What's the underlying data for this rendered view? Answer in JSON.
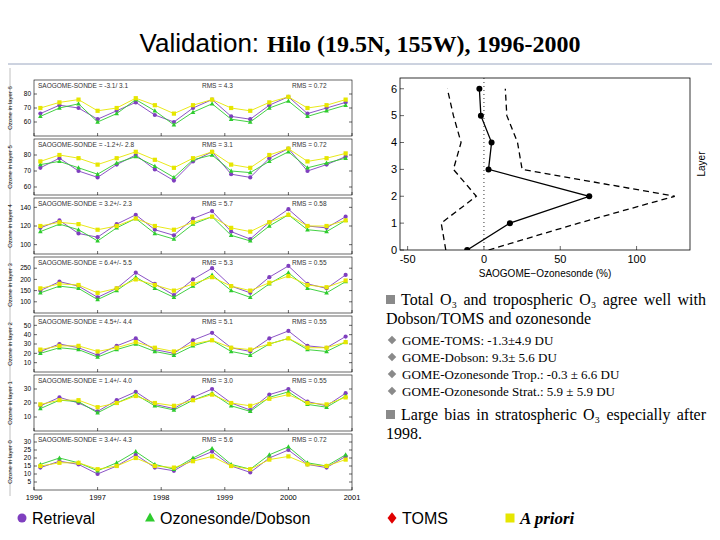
{
  "title": {
    "prefix": "Validation:",
    "text": "Hilo (19.5N, 155W), 1996-2000"
  },
  "chart_data": [
    {
      "type": "line",
      "ylabel": "Ozone in layer 6",
      "annotations": [
        "SAOGOME-SONDE = -3.1/ 3.1",
        "RMS = 4.3",
        "RMS = 0.72"
      ],
      "x": [
        1996.1,
        1996.4,
        1996.7,
        1997.0,
        1997.3,
        1997.6,
        1997.9,
        1998.2,
        1998.5,
        1998.8,
        1999.1,
        1999.4,
        1999.7,
        2000.0,
        2000.3,
        2000.6,
        2000.9
      ],
      "xlim": [
        1996,
        2001
      ],
      "xticks": [
        1996,
        1997,
        1998,
        1999,
        2000,
        2001
      ],
      "ylim": [
        50,
        90
      ],
      "yticks": [
        60,
        70,
        80
      ],
      "tick_labels": "y",
      "series": [
        {
          "color": "#7f3fbf",
          "marker": "circle",
          "line_style": "solid",
          "values": [
            66,
            72,
            70,
            62,
            68,
            74,
            65,
            60,
            70,
            76,
            64,
            62,
            72,
            78,
            66,
            70,
            74
          ]
        },
        {
          "color": "#2ecc2e",
          "marker": "triangle",
          "line_style": "solid",
          "values": [
            64,
            70,
            73,
            60,
            66,
            76,
            68,
            58,
            67,
            73,
            62,
            60,
            70,
            75,
            64,
            68,
            72
          ]
        },
        {
          "color": "#e6e600",
          "marker": "square",
          "line_style": "solid",
          "values": [
            70,
            74,
            76,
            68,
            70,
            77,
            72,
            66,
            72,
            76,
            70,
            68,
            74,
            78,
            70,
            72,
            76
          ]
        }
      ]
    },
    {
      "type": "line",
      "ylabel": "Ozone in layer 5",
      "annotations": [
        "SAOGOME-SONDE = -1.2+/- 2.8",
        "RMS = 3.1",
        "RMS = 0.72"
      ],
      "x": [
        1996.1,
        1996.4,
        1996.7,
        1997.0,
        1997.3,
        1997.6,
        1997.9,
        1998.2,
        1998.5,
        1998.8,
        1999.1,
        1999.4,
        1999.7,
        2000.0,
        2000.3,
        2000.6,
        2000.9
      ],
      "xlim": [
        1996,
        2001
      ],
      "xticks": [
        1996,
        1997,
        1998,
        1999,
        2000,
        2001
      ],
      "ylim": [
        55,
        90
      ],
      "yticks": [
        60,
        70,
        80
      ],
      "tick_labels": "y",
      "series": [
        {
          "color": "#7f3fbf",
          "marker": "circle",
          "line_style": "solid",
          "values": [
            72,
            78,
            70,
            66,
            74,
            80,
            71,
            64,
            76,
            82,
            68,
            66,
            78,
            84,
            70,
            74,
            79
          ]
        },
        {
          "color": "#2ecc2e",
          "marker": "triangle",
          "line_style": "solid",
          "values": [
            74,
            76,
            72,
            68,
            75,
            79,
            73,
            66,
            77,
            80,
            70,
            69,
            76,
            82,
            72,
            75,
            78
          ]
        },
        {
          "color": "#e6e600",
          "marker": "square",
          "line_style": "solid",
          "values": [
            76,
            80,
            78,
            74,
            78,
            82,
            77,
            72,
            78,
            82,
            74,
            72,
            80,
            84,
            76,
            78,
            81
          ]
        }
      ]
    },
    {
      "type": "line",
      "ylabel": "Ozone in layer 4",
      "annotations": [
        "SAOGOME-SONDE = 3.2+/- 2.3",
        "RMS = 5.7",
        "RMS = 0.58"
      ],
      "x": [
        1996.1,
        1996.4,
        1996.7,
        1997.0,
        1997.3,
        1997.6,
        1997.9,
        1998.2,
        1998.5,
        1998.8,
        1999.1,
        1999.4,
        1999.7,
        2000.0,
        2000.3,
        2000.6,
        2000.9
      ],
      "xlim": [
        1996,
        2001
      ],
      "xticks": [
        1996,
        1997,
        1998,
        1999,
        2000,
        2001
      ],
      "ylim": [
        90,
        150
      ],
      "yticks": [
        100,
        120,
        140
      ],
      "tick_labels": "y",
      "series": [
        {
          "color": "#7f3fbf",
          "marker": "circle",
          "line_style": "solid",
          "values": [
            118,
            126,
            112,
            108,
            122,
            132,
            116,
            110,
            128,
            136,
            114,
            106,
            124,
            138,
            120,
            118,
            130
          ]
        },
        {
          "color": "#2ecc2e",
          "marker": "triangle",
          "line_style": "solid",
          "values": [
            114,
            122,
            116,
            104,
            118,
            128,
            112,
            106,
            122,
            130,
            110,
            104,
            120,
            132,
            116,
            114,
            126
          ]
        },
        {
          "color": "#e6e600",
          "marker": "square",
          "line_style": "solid",
          "values": [
            120,
            124,
            122,
            116,
            120,
            128,
            120,
            116,
            124,
            130,
            118,
            114,
            124,
            132,
            120,
            120,
            126
          ]
        }
      ]
    },
    {
      "type": "line",
      "ylabel": "Ozone in layer 3",
      "annotations": [
        "SAOGOME-SONDE = 6.4+/- 5.5",
        "RMS = 5.3",
        "RMS = 0.55"
      ],
      "x": [
        1996.1,
        1996.4,
        1996.7,
        1997.0,
        1997.3,
        1997.6,
        1997.9,
        1998.2,
        1998.5,
        1998.8,
        1999.1,
        1999.4,
        1999.7,
        2000.0,
        2000.3,
        2000.6,
        2000.9
      ],
      "xlim": [
        1996,
        2001
      ],
      "xticks": [
        1996,
        1997,
        1998,
        1999,
        2000,
        2001
      ],
      "ylim": [
        50,
        300
      ],
      "yticks": [
        100,
        150,
        200,
        250
      ],
      "tick_labels": "y",
      "series": [
        {
          "color": "#7f3fbf",
          "marker": "circle",
          "line_style": "solid",
          "values": [
            150,
            190,
            170,
            120,
            160,
            230,
            180,
            130,
            200,
            250,
            170,
            140,
            210,
            260,
            180,
            160,
            220
          ]
        },
        {
          "color": "#2ecc2e",
          "marker": "triangle",
          "line_style": "solid",
          "values": [
            140,
            170,
            160,
            110,
            150,
            210,
            160,
            120,
            170,
            220,
            150,
            120,
            180,
            230,
            160,
            140,
            190
          ]
        },
        {
          "color": "#e6e600",
          "marker": "square",
          "line_style": "solid",
          "values": [
            160,
            180,
            175,
            140,
            160,
            200,
            175,
            150,
            180,
            210,
            170,
            150,
            185,
            215,
            175,
            165,
            195
          ]
        }
      ]
    },
    {
      "type": "line",
      "ylabel": "Ozone in layer 2",
      "annotations": [
        "SAOGOME-SONDE = 4.5+/- 4.4",
        "RMS = 5.1",
        "RMS = 0.55"
      ],
      "x": [
        1996.1,
        1996.4,
        1996.7,
        1997.0,
        1997.3,
        1997.6,
        1997.9,
        1998.2,
        1998.5,
        1998.8,
        1999.1,
        1999.4,
        1999.7,
        2000.0,
        2000.3,
        2000.6,
        2000.9
      ],
      "xlim": [
        1996,
        2001
      ],
      "xticks": [
        1996,
        1997,
        1998,
        1999,
        2000,
        2001
      ],
      "ylim": [
        0,
        60
      ],
      "yticks": [
        10,
        20,
        30,
        40,
        50
      ],
      "tick_labels": "y",
      "series": [
        {
          "color": "#7f3fbf",
          "marker": "circle",
          "line_style": "solid",
          "values": [
            22,
            30,
            26,
            18,
            28,
            36,
            24,
            20,
            34,
            42,
            26,
            22,
            36,
            44,
            28,
            26,
            38
          ]
        },
        {
          "color": "#2ecc2e",
          "marker": "triangle",
          "line_style": "solid",
          "values": [
            20,
            26,
            24,
            16,
            24,
            30,
            22,
            18,
            28,
            34,
            22,
            18,
            30,
            36,
            24,
            22,
            32
          ]
        },
        {
          "color": "#e6e600",
          "marker": "square",
          "line_style": "solid",
          "values": [
            24,
            28,
            28,
            22,
            26,
            32,
            26,
            22,
            30,
            34,
            26,
            24,
            30,
            36,
            26,
            26,
            32
          ]
        }
      ]
    },
    {
      "type": "line",
      "ylabel": "Ozone in layer 1",
      "annotations": [
        "SAOGOME-SONDE = 1.4+/- 4.0",
        "RMS = 3.0",
        "RMS = 0.55"
      ],
      "x": [
        1996.1,
        1996.4,
        1996.7,
        1997.0,
        1997.3,
        1997.6,
        1997.9,
        1998.2,
        1998.5,
        1998.8,
        1999.1,
        1999.4,
        1999.7,
        2000.0,
        2000.3,
        2000.6,
        2000.9
      ],
      "xlim": [
        1996,
        2001
      ],
      "xticks": [
        1996,
        1997,
        1998,
        1999,
        2000,
        2001
      ],
      "ylim": [
        0,
        40
      ],
      "yticks": [
        10,
        20,
        30
      ],
      "tick_labels": "y",
      "series": [
        {
          "color": "#7f3fbf",
          "marker": "circle",
          "line_style": "solid",
          "values": [
            18,
            24,
            20,
            14,
            22,
            28,
            19,
            16,
            24,
            30,
            20,
            15,
            26,
            30,
            21,
            18,
            27
          ]
        },
        {
          "color": "#2ecc2e",
          "marker": "triangle",
          "line_style": "solid",
          "values": [
            16,
            22,
            21,
            13,
            20,
            26,
            18,
            15,
            22,
            27,
            18,
            14,
            24,
            28,
            19,
            17,
            25
          ]
        },
        {
          "color": "#e6e600",
          "marker": "square",
          "line_style": "solid",
          "values": [
            19,
            22,
            22,
            17,
            20,
            25,
            20,
            18,
            22,
            26,
            20,
            18,
            23,
            26,
            20,
            19,
            24
          ]
        }
      ]
    },
    {
      "type": "line",
      "ylabel": "Ozone in layer 0",
      "annotations": [
        "SAOGOME-SONDE = 3.4+/- 4.3",
        "RMS = 5.6",
        "RMS = 0.72"
      ],
      "x": [
        1996.1,
        1996.4,
        1996.7,
        1997.0,
        1997.3,
        1997.6,
        1997.9,
        1998.2,
        1998.5,
        1998.8,
        1999.1,
        1999.4,
        1999.7,
        2000.0,
        2000.3,
        2000.6,
        2000.9
      ],
      "xlim": [
        1996,
        2001
      ],
      "xticks": [
        1996,
        1997,
        1998,
        1999,
        2000,
        2001
      ],
      "ylim": [
        0,
        35
      ],
      "yticks": [
        5,
        10,
        15,
        20,
        25,
        30
      ],
      "tick_labels": true,
      "series": [
        {
          "color": "#7f3fbf",
          "marker": "circle",
          "line_style": "solid",
          "values": [
            14,
            18,
            16,
            10,
            15,
            22,
            14,
            12,
            19,
            24,
            15,
            11,
            20,
            25,
            16,
            14,
            21
          ]
        },
        {
          "color": "#2ecc2e",
          "marker": "triangle",
          "line_style": "solid",
          "values": [
            16,
            20,
            17,
            12,
            17,
            24,
            16,
            13,
            20,
            26,
            16,
            13,
            22,
            27,
            17,
            15,
            22
          ]
        },
        {
          "color": "#e6e600",
          "marker": "square",
          "line_style": "solid",
          "values": [
            15,
            17,
            17,
            13,
            15,
            20,
            15,
            14,
            18,
            21,
            15,
            13,
            19,
            21,
            16,
            15,
            19
          ]
        }
      ]
    },
    {
      "type": "line",
      "orientation": "horizontal",
      "xlabel": "SAOGOME−Ozonesonde (%)",
      "ylabel": "Layer",
      "y": [
        0,
        1,
        2,
        3,
        4,
        5,
        6
      ],
      "xlim": [
        -55,
        135
      ],
      "xticks": [
        -50,
        0,
        50,
        100
      ],
      "ylim": [
        0,
        6.4
      ],
      "yticks": [
        0,
        1,
        2,
        3,
        4,
        5,
        6
      ],
      "vline": 0,
      "series": [
        {
          "color": "#000000",
          "line_style": "solid",
          "marker": "circle",
          "values": [
            -11,
            17,
            69,
            3,
            5,
            -2,
            -3
          ]
        },
        {
          "color": "#000000",
          "line_style": "dashed",
          "marker": "none",
          "values": [
            -25,
            -28,
            -5,
            -20,
            -15,
            -20,
            -24
          ]
        },
        {
          "color": "#000000",
          "line_style": "dashed",
          "marker": "none",
          "values": [
            3,
            62,
            125,
            25,
            22,
            15,
            14
          ]
        }
      ]
    }
  ],
  "bullets": [
    {
      "text": "Total O₃ and tropospheric O₃ agree well with Dobson/TOMS and ozonesonde",
      "sub": [
        "GOME-TOMS:  -1.3±4.9 DU",
        "GOME-Dobson: 9.3± 5.6 DU",
        "GOME-Ozonesonde Trop.: -0.3 ± 6.6 DU",
        "GOME-Ozonesonde Strat.: 5.9 ± 5.9 DU"
      ]
    },
    {
      "text": "Large bias in stratospheric O₃ especially after 1998.",
      "sub": []
    }
  ],
  "legend": [
    {
      "name": "Retrieval",
      "color": "#7f3fbf",
      "marker": "circle"
    },
    {
      "name": "Ozonesonde/Dobson",
      "color": "#2ecc2e",
      "marker": "triangle"
    },
    {
      "name": "TOMS",
      "color": "#e00000",
      "marker": "diamond"
    },
    {
      "name": "A priori",
      "color": "#e6e600",
      "marker": "square"
    }
  ]
}
